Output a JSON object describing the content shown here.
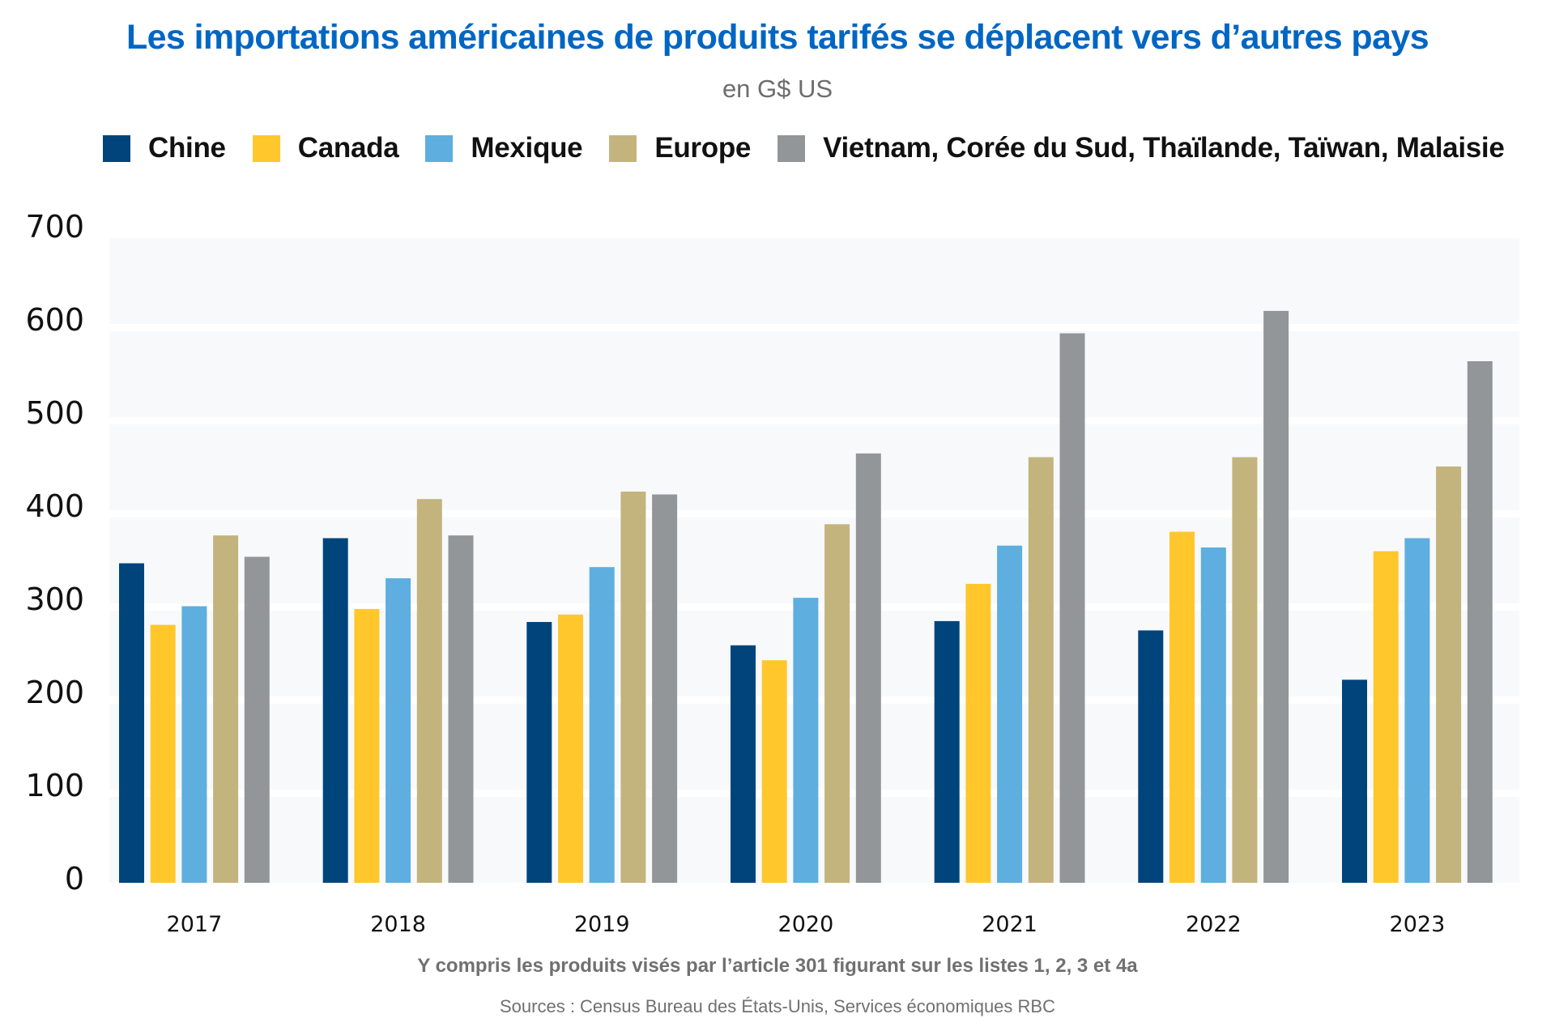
{
  "colors": {
    "title": "#0066C4",
    "panel_bg": "#F7F9FB",
    "grid_gap": "#FFFFFF"
  },
  "chart_data": {
    "type": "bar",
    "title": "Les importations américaines de produits tarifés se déplacent vers d’autres pays",
    "subtitle": "en G$ US",
    "xlabel": "",
    "ylabel": "",
    "ylim": [
      0,
      700
    ],
    "yticks": [
      0,
      100,
      200,
      300,
      400,
      500,
      600,
      700
    ],
    "grid": true,
    "legend_position": "top",
    "categories": [
      "2017",
      "2018",
      "2019",
      "2020",
      "2021",
      "2022",
      "2023"
    ],
    "series": [
      {
        "name": "Chine",
        "color": "#00447C",
        "values": [
          343,
          370,
          280,
          255,
          281,
          271,
          218
        ]
      },
      {
        "name": "Canada",
        "color": "#FFC72C",
        "values": [
          277,
          294,
          288,
          239,
          321,
          377,
          356
        ]
      },
      {
        "name": "Mexique",
        "color": "#5EAEDF",
        "values": [
          297,
          327,
          339,
          306,
          362,
          360,
          370
        ]
      },
      {
        "name": "Europe",
        "color": "#C3B47D",
        "values": [
          373,
          412,
          420,
          385,
          457,
          457,
          447
        ]
      },
      {
        "name": "Vietnam, Corée du Sud, Thaïlande, Taïwan, Malaisie",
        "color": "#939699",
        "values": [
          350,
          373,
          417,
          461,
          590,
          614,
          560
        ]
      }
    ],
    "footnote": "Y compris les produits visés par l’article 301 figurant sur les listes 1, 2, 3 et 4a",
    "sources": "Sources : Census Bureau des États-Unis, Services économiques RBC"
  }
}
